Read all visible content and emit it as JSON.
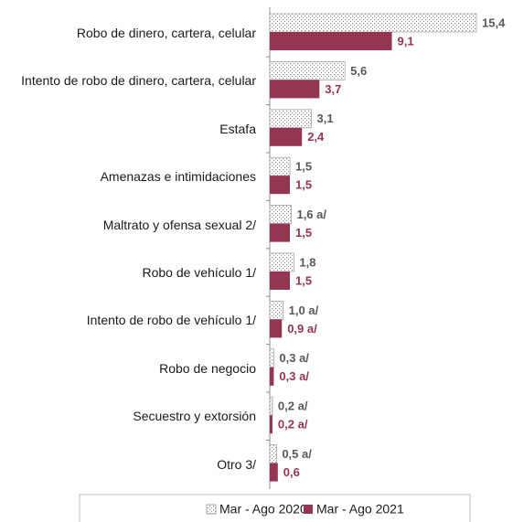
{
  "chart_data": {
    "type": "bar",
    "orientation": "horizontal",
    "categories": [
      "Robo de dinero, cartera, celular",
      "Intento de robo de dinero, cartera, celular",
      "Estafa",
      "Amenazas e intimidaciones",
      "Maltrato y ofensa sexual 2/",
      "Robo  de vehículo 1/",
      "Intento de robo de vehículo 1/",
      "Robo de negocio",
      "Secuestro y extorsión",
      "Otro 3/"
    ],
    "series": [
      {
        "name": "Mar - Ago 2020",
        "color": "#d9d9d9",
        "pattern": "dots",
        "values": [
          15.4,
          5.6,
          3.1,
          1.5,
          1.6,
          1.8,
          1.0,
          0.3,
          0.2,
          0.5
        ],
        "value_labels": [
          "15,4",
          "5,6",
          "3,1",
          "1,5",
          "1,6 a/",
          "1,8",
          "1,0 a/",
          "0,3 a/",
          "0,2 a/",
          "0,5 a/"
        ]
      },
      {
        "name": "Mar - Ago 2021",
        "color": "#943551",
        "values": [
          9.1,
          3.7,
          2.4,
          1.5,
          1.5,
          1.5,
          0.9,
          0.3,
          0.2,
          0.6
        ],
        "value_labels": [
          "9,1",
          "3,7",
          "2,4",
          "1,5",
          "1,5",
          "1,5",
          "0,9 a/",
          "0,3 a/",
          "0,2 a/",
          "0,6"
        ]
      }
    ],
    "legend": "bottom"
  }
}
